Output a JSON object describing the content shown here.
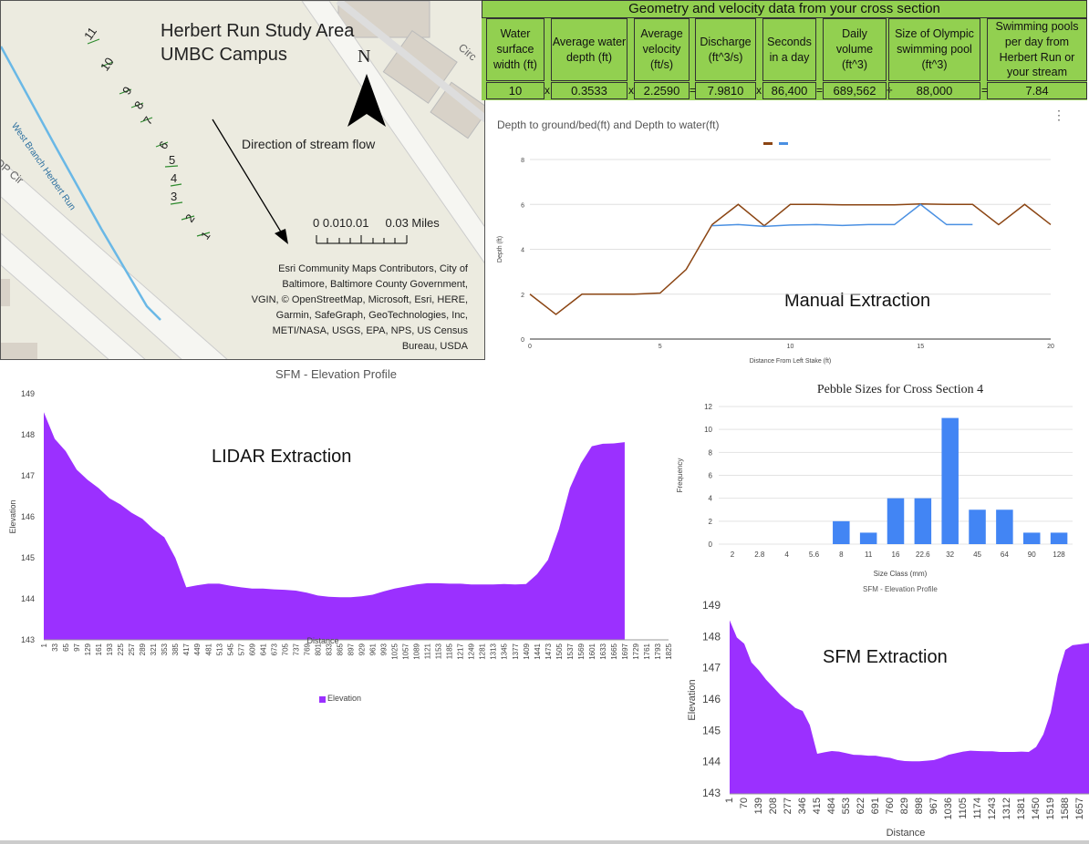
{
  "map": {
    "title_line1": "Herbert Run Study Area",
    "title_line2": "UMBC Campus",
    "north": "N",
    "flow_label": "Direction of stream flow",
    "scale_label": "0 0.010.01     0.03 Miles",
    "river_label": "West Branch Herbert Run",
    "road_label_left": "OP Cir",
    "road_label_top": "Circ",
    "stakes": [
      "11",
      "10",
      "9",
      "8",
      "7",
      "6",
      "5",
      "4",
      "3",
      "2",
      "1"
    ],
    "attribution": [
      "Esri Community Maps Contributors, City of",
      "Baltimore, Baltimore County Government,",
      "VGIN, © OpenStreetMap, Microsoft, Esri, HERE,",
      "Garmin, SafeGraph, GeoTechnologies, Inc,",
      "METI/NASA, USGS, EPA, NPS, US Census",
      "Bureau, USDA"
    ]
  },
  "table": {
    "title": "Geometry and velocity data from your cross section",
    "headers": [
      "Water surface width (ft)",
      "Average water  depth (ft)",
      "Average velocity (ft/s)",
      "Discharge (ft^3/s)",
      "Seconds in a day",
      "Daily volume (ft^3)",
      "Size of Olympic swimming pool (ft^3)",
      "Swimming pools per day from Herbert Run or your stream"
    ],
    "values": [
      "10",
      "0.3533",
      "2.2590",
      "7.9810",
      "86,400",
      "689,562",
      "88,000",
      "7.84"
    ],
    "operators": [
      "x",
      "x",
      "=",
      "x",
      "=",
      "÷",
      "="
    ]
  },
  "depth_chart": {
    "title": "Depth to ground/bed(ft) and Depth to water(ft)",
    "overlay_label": "Manual Extraction",
    "menu": "⋮",
    "chart_data": {
      "type": "line",
      "title": "Depth to ground/bed(ft) and Depth to water(ft)",
      "xlabel": "Distance From Left Stake (ft)",
      "ylabel": "Depth (ft)",
      "xlim": [
        0,
        20
      ],
      "ylim": [
        0,
        8
      ],
      "x_ticks": [
        "0",
        "5",
        "10",
        "15",
        "20"
      ],
      "y_ticks": [
        "0",
        "2",
        "4",
        "6",
        "8"
      ],
      "series": [
        {
          "color": "#8b4513",
          "x": [
            0,
            1,
            2,
            3,
            4,
            5,
            6,
            7,
            8,
            9,
            10,
            11,
            12,
            13,
            14,
            15,
            16,
            17,
            18,
            19,
            20
          ],
          "y": [
            2.0,
            1.1,
            2.0,
            2.0,
            2.0,
            2.05,
            3.1,
            5.1,
            6.0,
            5.05,
            6.0,
            6.0,
            5.98,
            5.98,
            5.98,
            6.02,
            6.0,
            6.0,
            5.1,
            6.0,
            5.1
          ]
        },
        {
          "color": "#4a90e2",
          "x": [
            7,
            8,
            9,
            10,
            11,
            12,
            13,
            14,
            15,
            16,
            17
          ],
          "y": [
            5.05,
            5.1,
            5.02,
            5.08,
            5.1,
            5.06,
            5.1,
            5.1,
            6.0,
            5.1,
            5.1
          ]
        }
      ]
    }
  },
  "lidar_chart": {
    "title": "SFM - Elevation Profile",
    "overlay_label": "LIDAR Extraction",
    "legend": "Elevation",
    "chart_data": {
      "type": "area",
      "title": "SFM - Elevation Profile",
      "xlabel": "Distance",
      "ylabel": "Elevation",
      "ylim": [
        143,
        149
      ],
      "y_ticks": [
        "143",
        "144",
        "145",
        "146",
        "147",
        "148",
        "149"
      ],
      "x_ticks": [
        "1",
        "33",
        "65",
        "97",
        "129",
        "161",
        "193",
        "225",
        "257",
        "289",
        "321",
        "353",
        "385",
        "417",
        "449",
        "481",
        "513",
        "545",
        "577",
        "609",
        "641",
        "673",
        "705",
        "737",
        "769",
        "801",
        "833",
        "865",
        "897",
        "929",
        "961",
        "993",
        "1025",
        "1057",
        "1089",
        "1121",
        "1153",
        "1185",
        "1217",
        "1249",
        "1281",
        "1313",
        "1345",
        "1377",
        "1409",
        "1441",
        "1473",
        "1505",
        "1537",
        "1569",
        "1601",
        "1633",
        "1665",
        "1697",
        "1729",
        "1761",
        "1793",
        "1825"
      ],
      "color": "#9b30ff",
      "x": [
        1,
        33,
        65,
        97,
        129,
        161,
        193,
        225,
        257,
        289,
        321,
        353,
        385,
        417,
        449,
        481,
        513,
        545,
        577,
        609,
        641,
        673,
        705,
        737,
        769,
        801,
        833,
        865,
        897,
        929,
        961,
        993,
        1025,
        1057,
        1089,
        1121,
        1153,
        1185,
        1217,
        1249,
        1281,
        1313,
        1345,
        1377,
        1409,
        1441,
        1473,
        1505,
        1537,
        1569,
        1601,
        1633,
        1665,
        1697
      ],
      "y": [
        148.55,
        147.9,
        147.6,
        147.15,
        146.9,
        146.7,
        146.45,
        146.3,
        146.1,
        145.95,
        145.7,
        145.5,
        145.0,
        144.28,
        144.33,
        144.37,
        144.37,
        144.32,
        144.28,
        144.25,
        144.25,
        144.23,
        144.22,
        144.2,
        144.15,
        144.08,
        144.05,
        144.04,
        144.04,
        144.06,
        144.1,
        144.18,
        144.25,
        144.3,
        144.35,
        144.38,
        144.38,
        144.37,
        144.37,
        144.35,
        144.35,
        144.35,
        144.36,
        144.35,
        144.36,
        144.6,
        144.95,
        145.7,
        146.7,
        147.3,
        147.72,
        147.78,
        147.79,
        147.82
      ]
    }
  },
  "pebble_chart": {
    "caption": "SFM - Elevation Profile",
    "chart_data": {
      "type": "bar",
      "title": "Pebble Sizes for Cross Section 4",
      "xlabel": "Size Class (mm)",
      "ylabel": "Frequency",
      "ylim": [
        0,
        12
      ],
      "y_ticks": [
        "0",
        "2",
        "4",
        "6",
        "8",
        "10",
        "12"
      ],
      "categories": [
        "2",
        "2.8",
        "4",
        "5.6",
        "8",
        "11",
        "16",
        "22.6",
        "32",
        "45",
        "64",
        "90",
        "128"
      ],
      "values": [
        0,
        0,
        0,
        0,
        2,
        1,
        4,
        4,
        11,
        3,
        3,
        1,
        1
      ],
      "color": "#4285f4"
    }
  },
  "sfm_chart": {
    "overlay_label": "SFM Extraction",
    "chart_data": {
      "type": "area",
      "xlabel": "Distance",
      "ylabel": "Elevation",
      "ylim": [
        143,
        149
      ],
      "y_ticks": [
        "143",
        "144",
        "145",
        "146",
        "147",
        "148",
        "149"
      ],
      "x_ticks": [
        "1",
        "70",
        "139",
        "208",
        "277",
        "346",
        "415",
        "484",
        "553",
        "622",
        "691",
        "760",
        "829",
        "898",
        "967",
        "1036",
        "1105",
        "1174",
        "1243",
        "1312",
        "1381",
        "1450",
        "1519",
        "1588",
        "1657"
      ],
      "color": "#9b30ff",
      "x": [
        1,
        35,
        70,
        104,
        139,
        173,
        208,
        242,
        277,
        311,
        346,
        380,
        415,
        449,
        484,
        518,
        553,
        587,
        622,
        656,
        691,
        725,
        760,
        794,
        829,
        863,
        898,
        932,
        967,
        1001,
        1036,
        1070,
        1105,
        1139,
        1174,
        1208,
        1243,
        1277,
        1312,
        1346,
        1381,
        1415,
        1450,
        1484,
        1519,
        1553,
        1588,
        1622,
        1657,
        1700
      ],
      "y": [
        148.55,
        148.0,
        147.8,
        147.2,
        146.95,
        146.65,
        146.4,
        146.15,
        145.95,
        145.75,
        145.65,
        145.2,
        144.28,
        144.33,
        144.37,
        144.35,
        144.3,
        144.25,
        144.24,
        144.22,
        144.22,
        144.18,
        144.15,
        144.08,
        144.05,
        144.04,
        144.04,
        144.06,
        144.08,
        144.15,
        144.25,
        144.3,
        144.35,
        144.38,
        144.37,
        144.36,
        144.36,
        144.34,
        144.34,
        144.34,
        144.35,
        144.34,
        144.5,
        144.9,
        145.6,
        146.8,
        147.6,
        147.75,
        147.78,
        147.82
      ]
    }
  }
}
